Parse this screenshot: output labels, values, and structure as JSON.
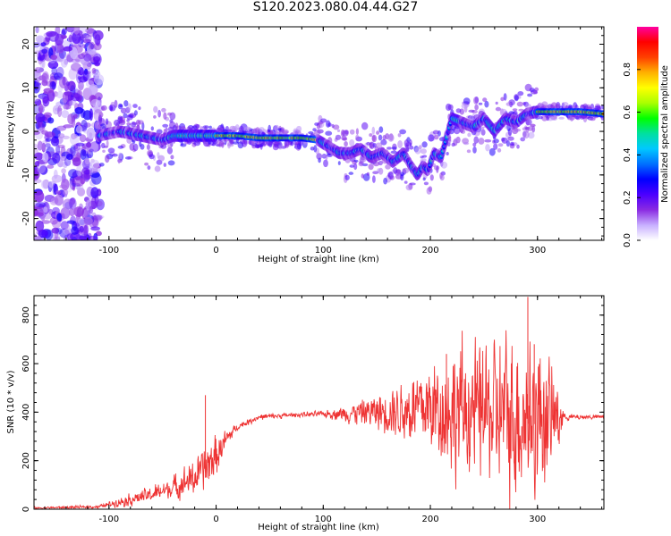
{
  "title": "S120.2023.080.04.44.G27",
  "chart_data": [
    {
      "type": "heatmap",
      "xlabel": "Height of straight line (km)",
      "ylabel": "Frequency (Hz)",
      "xlim": [
        -170,
        362
      ],
      "ylim": [
        -25,
        24
      ],
      "xticks": [
        -100,
        0,
        100,
        200,
        300
      ],
      "yticks": [
        -20,
        -10,
        0,
        10,
        20
      ],
      "colorbar": {
        "label": "Normalized spectral amplitude",
        "range": [
          0,
          1
        ],
        "ticks": [
          "0.0",
          "0.2",
          "0.4",
          "0.6",
          "0.8"
        ],
        "colors": [
          "#ffffff",
          "#c8b0ff",
          "#8a2be2",
          "#4b00ff",
          "#0000ff",
          "#0070ff",
          "#00c8ff",
          "#00e0a0",
          "#00ff00",
          "#aaff00",
          "#ffff00",
          "#ffb000",
          "#ff4000",
          "#ff0000",
          "#ff00a0"
        ]
      },
      "ridge": {
        "x": [
          -110,
          -90,
          -70,
          -50,
          -40,
          -30,
          -20,
          -10,
          0,
          20,
          40,
          60,
          80,
          95,
          105,
          115,
          125,
          135,
          145,
          155,
          165,
          175,
          182,
          188,
          193,
          198,
          203,
          210,
          220,
          230,
          240,
          250,
          260,
          270,
          280,
          290,
          300,
          320,
          340,
          362
        ],
        "y": [
          -1,
          0,
          -1,
          -2,
          -1,
          -1,
          -1,
          -1,
          -1,
          -1,
          -1.5,
          -1.5,
          -1.5,
          -2,
          -3.5,
          -5,
          -5,
          -4,
          -6,
          -5,
          -7,
          -5,
          -8,
          -10,
          -8,
          -9,
          -5,
          -6,
          3,
          2,
          1,
          3,
          0,
          3,
          2,
          4,
          4.5,
          4.5,
          4.5,
          4
        ]
      }
    },
    {
      "type": "line",
      "xlabel": "Height of straight line (km)",
      "ylabel": "SNR (10 * v/v)",
      "xlim": [
        -170,
        362
      ],
      "ylim": [
        0,
        880
      ],
      "xticks": [
        -100,
        0,
        100,
        200,
        300
      ],
      "yticks": [
        0,
        200,
        400,
        600,
        800
      ],
      "color": "#ee3333",
      "envelope": {
        "x": [
          -170,
          -110,
          -100,
          -80,
          -60,
          -40,
          -20,
          -10,
          0,
          10,
          20,
          40,
          60,
          80,
          100,
          120,
          140,
          160,
          180,
          200,
          220,
          240,
          260,
          280,
          300,
          310,
          320,
          325,
          340,
          362
        ],
        "mean": [
          5,
          10,
          20,
          40,
          60,
          90,
          130,
          170,
          220,
          290,
          340,
          380,
          385,
          390,
          392,
          395,
          400,
          405,
          410,
          420,
          410,
          405,
          400,
          395,
          390,
          380,
          385,
          380,
          380,
          380
        ],
        "amp": [
          3,
          5,
          8,
          20,
          25,
          35,
          60,
          70,
          70,
          30,
          10,
          10,
          8,
          8,
          10,
          25,
          45,
          70,
          110,
          160,
          200,
          220,
          230,
          260,
          260,
          200,
          120,
          10,
          8,
          8
        ]
      },
      "peaks": [
        {
          "x": -10,
          "y": 470
        },
        {
          "x": 215,
          "y": 640
        },
        {
          "x": 291,
          "y": 875
        },
        {
          "x": 297,
          "y": 680
        }
      ]
    }
  ]
}
